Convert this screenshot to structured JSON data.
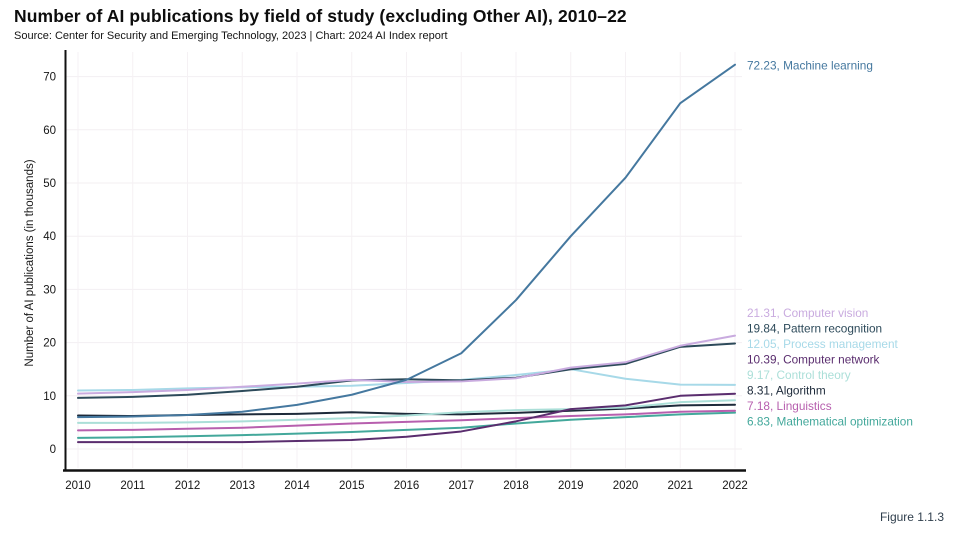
{
  "header": {
    "title": "Number of AI publications by field of study (excluding Other AI), 2010–22",
    "source": "Source: Center for Security and Emerging Technology, 2023 | Chart: 2024 AI Index report"
  },
  "figure_label": "Figure 1.1.3",
  "chart_data": {
    "type": "line",
    "title": "Number of AI publications by field of study (excluding Other AI), 2010–22",
    "x": [
      2010,
      2011,
      2012,
      2013,
      2014,
      2015,
      2016,
      2017,
      2018,
      2019,
      2020,
      2021,
      2022
    ],
    "xlabel": "",
    "ylabel": "Number of AI publications (in thousands)",
    "ylim": [
      0,
      75
    ],
    "yticks": [
      0,
      10,
      20,
      30,
      40,
      50,
      60,
      70
    ],
    "grid": true,
    "legend_position": "right end labels",
    "series": [
      {
        "name": "Machine learning",
        "slug": "machine-learning",
        "color": "#45789f",
        "end_label": "72.23, Machine learning",
        "values": [
          6.0,
          6.1,
          6.4,
          7.0,
          8.3,
          10.2,
          13.0,
          18.0,
          28.0,
          40.0,
          51.0,
          65.0,
          72.23
        ]
      },
      {
        "name": "Computer vision",
        "slug": "computer-vision",
        "color": "#c9abdf",
        "end_label": "21.31, Computer vision",
        "values": [
          10.4,
          10.7,
          11.1,
          11.7,
          12.3,
          13.0,
          12.6,
          12.7,
          13.3,
          15.3,
          16.3,
          19.4,
          21.31
        ]
      },
      {
        "name": "Pattern recognition",
        "slug": "pattern-recognition",
        "color": "#2d4a5a",
        "end_label": "19.84, Pattern recognition",
        "values": [
          9.6,
          9.8,
          10.2,
          10.9,
          11.7,
          12.9,
          13.1,
          12.9,
          13.4,
          15.0,
          16.0,
          19.2,
          19.84
        ]
      },
      {
        "name": "Process management",
        "slug": "process-management",
        "color": "#a7d9e8",
        "end_label": "12.05, Process management",
        "values": [
          11.0,
          11.1,
          11.4,
          11.6,
          11.7,
          11.9,
          12.4,
          13.0,
          13.9,
          15.0,
          13.2,
          12.1,
          12.05
        ]
      },
      {
        "name": "Computer network",
        "slug": "computer-network",
        "color": "#5a2d6e",
        "end_label": "10.39, Computer network",
        "values": [
          1.3,
          1.3,
          1.3,
          1.3,
          1.5,
          1.7,
          2.3,
          3.3,
          5.2,
          7.5,
          8.2,
          10.0,
          10.39
        ]
      },
      {
        "name": "Control theory",
        "slug": "control-theory",
        "color": "#abdfd8",
        "end_label": "9.17, Control theory",
        "values": [
          4.9,
          4.9,
          5.0,
          5.2,
          5.5,
          5.8,
          6.3,
          6.9,
          7.3,
          7.5,
          7.8,
          8.8,
          9.17
        ]
      },
      {
        "name": "Algorithm",
        "slug": "algorithm",
        "color": "#1d2a3a",
        "end_label": "8.31, Algorithm",
        "values": [
          6.3,
          6.2,
          6.4,
          6.5,
          6.6,
          6.9,
          6.6,
          6.5,
          6.8,
          7.2,
          7.6,
          8.2,
          8.31
        ]
      },
      {
        "name": "Linguistics",
        "slug": "linguistics",
        "color": "#b75fae",
        "end_label": "7.18, Linguistics",
        "values": [
          3.5,
          3.6,
          3.8,
          4.0,
          4.4,
          4.8,
          5.1,
          5.4,
          5.8,
          6.2,
          6.5,
          7.0,
          7.18
        ]
      },
      {
        "name": "Mathematical optimization",
        "slug": "mathematical-optimization",
        "color": "#43a89b",
        "end_label": "6.83, Mathematical optimization",
        "values": [
          2.1,
          2.2,
          2.4,
          2.6,
          2.9,
          3.2,
          3.6,
          4.0,
          4.8,
          5.5,
          6.0,
          6.5,
          6.83
        ]
      }
    ]
  }
}
